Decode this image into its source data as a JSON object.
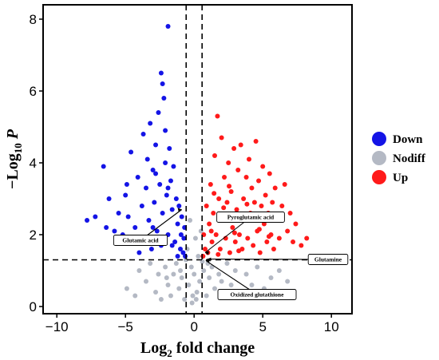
{
  "chart_data": {
    "type": "scatter",
    "xlabel": {
      "main": "Log",
      "sub": "2",
      "rest": " fold change"
    },
    "ylabel": {
      "prefix": "−Log",
      "sub": "10",
      "suffix": " P"
    },
    "xlim": [
      -11,
      11.5
    ],
    "ylim": [
      -0.2,
      8.4
    ],
    "xticks": [
      -10,
      -5,
      0,
      5,
      10
    ],
    "yticks": [
      0,
      2,
      4,
      6,
      8
    ],
    "thresholds": {
      "fc": [
        -0.58,
        0.58
      ],
      "p": 1.3
    },
    "legend": {
      "placement": "right",
      "entries": [
        {
          "label": "Down",
          "color": "#1414e6"
        },
        {
          "label": "Nodiff",
          "color": "#b4b9c4"
        },
        {
          "label": "Up",
          "color": "#ff1a1a"
        }
      ]
    },
    "series": [
      {
        "name": "Down",
        "color": "#1414e6",
        "points": [
          [
            -7.8,
            2.4
          ],
          [
            -7.2,
            2.5
          ],
          [
            -6.6,
            3.9
          ],
          [
            -6.4,
            2.2
          ],
          [
            -6.2,
            3.0
          ],
          [
            -5.8,
            2.1
          ],
          [
            -5.5,
            2.6
          ],
          [
            -5.2,
            2.0
          ],
          [
            -5.0,
            3.1
          ],
          [
            -4.8,
            2.5
          ],
          [
            -4.6,
            4.3
          ],
          [
            -4.5,
            1.8
          ],
          [
            -4.3,
            2.2
          ],
          [
            -4.1,
            3.6
          ],
          [
            -4.0,
            1.5
          ],
          [
            -3.8,
            2.8
          ],
          [
            -3.7,
            4.8
          ],
          [
            -3.6,
            1.9
          ],
          [
            -3.5,
            3.3
          ],
          [
            -3.4,
            4.1
          ],
          [
            -3.3,
            2.4
          ],
          [
            -3.2,
            5.1
          ],
          [
            -3.1,
            1.6
          ],
          [
            -3.0,
            3.8
          ],
          [
            -2.9,
            2.9
          ],
          [
            -2.8,
            4.5
          ],
          [
            -2.7,
            2.1
          ],
          [
            -2.6,
            5.4
          ],
          [
            -2.5,
            3.4
          ],
          [
            -2.4,
            6.5
          ],
          [
            -2.3,
            6.2
          ],
          [
            -2.3,
            2.6
          ],
          [
            -2.2,
            5.8
          ],
          [
            -2.1,
            4.0
          ],
          [
            -2.0,
            3.1
          ],
          [
            -1.9,
            7.8
          ],
          [
            -1.9,
            2.0
          ],
          [
            -1.8,
            4.4
          ],
          [
            -1.7,
            3.5
          ],
          [
            -1.6,
            2.7
          ],
          [
            -1.5,
            3.9
          ],
          [
            -1.4,
            1.8
          ],
          [
            -1.3,
            3.0
          ],
          [
            -1.2,
            2.3
          ],
          [
            -1.1,
            2.8
          ],
          [
            -1.0,
            1.6
          ],
          [
            -0.95,
            2.0
          ],
          [
            -0.9,
            2.5
          ],
          [
            -0.8,
            1.5
          ],
          [
            -0.75,
            1.9
          ],
          [
            -0.7,
            2.2
          ],
          [
            -0.65,
            1.4
          ],
          [
            -4.9,
            3.4
          ],
          [
            -2.1,
            4.9
          ],
          [
            -3.0,
            2.2
          ],
          [
            -1.6,
            1.7
          ],
          [
            -2.8,
            3.7
          ],
          [
            -1.2,
            1.4
          ],
          [
            -2.4,
            1.7
          ],
          [
            -1.9,
            3.3
          ]
        ]
      },
      {
        "name": "Nodiff",
        "color": "#b4b9c4",
        "points": [
          [
            -4.9,
            0.5
          ],
          [
            -4.3,
            0.3
          ],
          [
            -4.0,
            1.0
          ],
          [
            -3.5,
            0.7
          ],
          [
            -3.2,
            1.2
          ],
          [
            -2.8,
            0.4
          ],
          [
            -2.6,
            0.9
          ],
          [
            -2.4,
            0.2
          ],
          [
            -2.1,
            1.1
          ],
          [
            -1.9,
            0.6
          ],
          [
            -1.7,
            0.3
          ],
          [
            -1.5,
            0.9
          ],
          [
            -1.3,
            1.2
          ],
          [
            -1.1,
            0.5
          ],
          [
            -0.9,
            0.8
          ],
          [
            -0.7,
            0.2
          ],
          [
            -0.5,
            1.6
          ],
          [
            -0.4,
            0.6
          ],
          [
            -0.3,
            2.4
          ],
          [
            -0.2,
            1.1
          ],
          [
            -0.1,
            0.3
          ],
          [
            0.0,
            0.9
          ],
          [
            0.1,
            1.9
          ],
          [
            0.2,
            0.4
          ],
          [
            0.3,
            1.4
          ],
          [
            0.4,
            0.7
          ],
          [
            0.5,
            2.1
          ],
          [
            0.7,
            1.0
          ],
          [
            0.9,
            0.3
          ],
          [
            1.1,
            0.8
          ],
          [
            1.3,
            1.1
          ],
          [
            1.5,
            0.5
          ],
          [
            1.8,
            0.9
          ],
          [
            2.1,
            0.3
          ],
          [
            2.4,
            1.2
          ],
          [
            2.7,
            0.6
          ],
          [
            3.0,
            1.0
          ],
          [
            3.4,
            0.4
          ],
          [
            3.8,
            0.9
          ],
          [
            4.2,
            0.6
          ],
          [
            4.6,
            1.1
          ],
          [
            5.1,
            0.5
          ],
          [
            5.6,
            0.8
          ],
          [
            6.2,
            1.0
          ],
          [
            6.8,
            0.7
          ],
          [
            -0.15,
            0.1
          ],
          [
            0.15,
            0.2
          ],
          [
            -0.6,
            1.3
          ],
          [
            0.6,
            1.25
          ],
          [
            -1.0,
            1.0
          ],
          [
            1.0,
            1.2
          ],
          [
            -2.0,
            0.8
          ],
          [
            2.0,
            0.7
          ]
        ]
      },
      {
        "name": "Up",
        "color": "#ff1a1a",
        "points": [
          [
            0.65,
            1.4
          ],
          [
            0.7,
            2.0
          ],
          [
            0.8,
            1.6
          ],
          [
            0.9,
            2.8
          ],
          [
            1.0,
            1.5
          ],
          [
            1.1,
            2.3
          ],
          [
            1.2,
            3.4
          ],
          [
            1.3,
            1.8
          ],
          [
            1.4,
            2.6
          ],
          [
            1.5,
            4.2
          ],
          [
            1.6,
            2.0
          ],
          [
            1.7,
            5.3
          ],
          [
            1.8,
            3.0
          ],
          [
            1.9,
            1.6
          ],
          [
            2.0,
            4.7
          ],
          [
            2.1,
            2.4
          ],
          [
            2.2,
            3.6
          ],
          [
            2.3,
            1.9
          ],
          [
            2.4,
            2.9
          ],
          [
            2.5,
            4.0
          ],
          [
            2.6,
            1.5
          ],
          [
            2.7,
            3.2
          ],
          [
            2.8,
            2.2
          ],
          [
            2.9,
            4.4
          ],
          [
            3.0,
            1.8
          ],
          [
            3.1,
            2.7
          ],
          [
            3.2,
            3.8
          ],
          [
            3.3,
            2.0
          ],
          [
            3.4,
            4.5
          ],
          [
            3.5,
            1.6
          ],
          [
            3.6,
            3.0
          ],
          [
            3.7,
            2.4
          ],
          [
            3.8,
            3.6
          ],
          [
            3.9,
            1.9
          ],
          [
            4.0,
            4.1
          ],
          [
            4.1,
            2.6
          ],
          [
            4.2,
            3.3
          ],
          [
            4.3,
            1.7
          ],
          [
            4.4,
            2.9
          ],
          [
            4.5,
            4.6
          ],
          [
            4.6,
            2.1
          ],
          [
            4.7,
            3.5
          ],
          [
            4.8,
            1.5
          ],
          [
            4.9,
            2.8
          ],
          [
            5.0,
            3.9
          ],
          [
            5.1,
            2.3
          ],
          [
            5.2,
            3.1
          ],
          [
            5.3,
            1.8
          ],
          [
            5.4,
            2.6
          ],
          [
            5.5,
            3.7
          ],
          [
            5.6,
            2.0
          ],
          [
            5.7,
            2.9
          ],
          [
            5.8,
            1.6
          ],
          [
            5.9,
            3.3
          ],
          [
            6.0,
            2.4
          ],
          [
            6.2,
            1.9
          ],
          [
            6.4,
            2.8
          ],
          [
            6.6,
            3.4
          ],
          [
            6.8,
            2.1
          ],
          [
            7.0,
            2.6
          ],
          [
            7.2,
            1.8
          ],
          [
            7.4,
            2.3
          ],
          [
            7.8,
            1.7
          ],
          [
            8.2,
            1.9
          ],
          [
            1.25,
            2.1
          ],
          [
            2.15,
            2.75
          ],
          [
            3.25,
            1.55
          ],
          [
            4.35,
            2.45
          ],
          [
            5.45,
            1.95
          ],
          [
            2.55,
            3.35
          ],
          [
            1.75,
            1.45
          ],
          [
            3.85,
            2.85
          ],
          [
            4.75,
            2.15
          ],
          [
            1.45,
            3.15
          ],
          [
            2.95,
            2.05
          ]
        ]
      }
    ],
    "annotations": [
      {
        "label": "Glutamic acid",
        "point": [
          -0.9,
          2.7
        ]
      },
      {
        "label": "Pyroglutamic acid",
        "point": [
          0.8,
          1.5
        ]
      },
      {
        "label": "Glutamine",
        "point": [
          0.95,
          1.32
        ]
      },
      {
        "label": "Oxidized glutathione",
        "point": [
          0.85,
          1.28
        ]
      }
    ]
  }
}
